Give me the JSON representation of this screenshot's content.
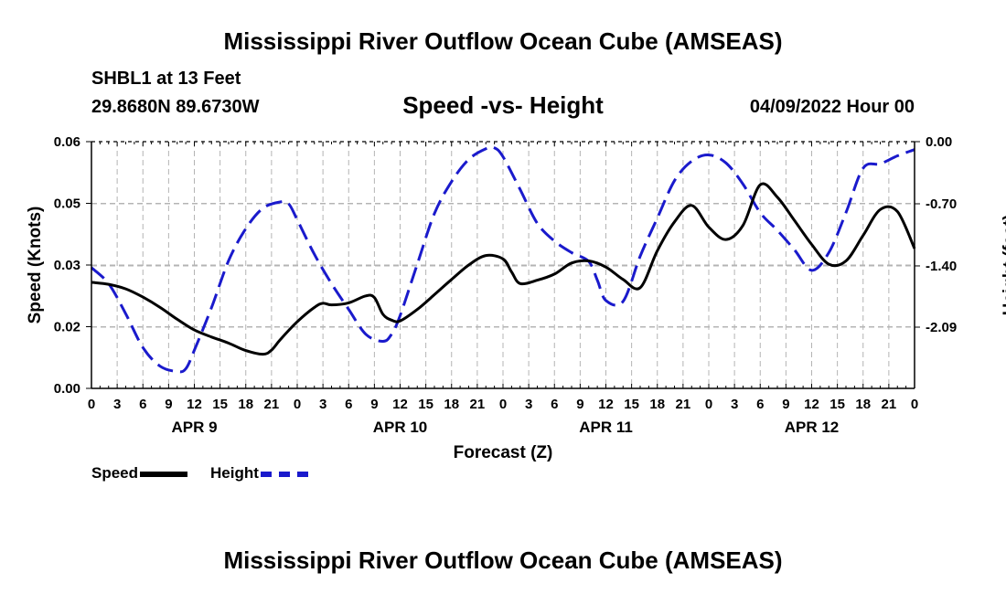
{
  "header": {
    "title": "Mississippi River Outflow Ocean Cube (AMSEAS)",
    "station": "SHBL1 at 13 Feet",
    "coords": "29.8680N  89.6730W",
    "subtitle": "Speed -vs- Height",
    "datetime": "04/09/2022 Hour 00"
  },
  "footer": {
    "title": "Mississippi River Outflow Ocean Cube (AMSEAS)"
  },
  "legend": {
    "speed": "Speed",
    "height": "Height"
  },
  "colors": {
    "speed": "#000000",
    "height": "#1a1acc",
    "grid": "#b4b4b4"
  },
  "chart_data": {
    "type": "line",
    "xlabel": "Forecast (Z)",
    "ylabel_left": "Speed (Knots)",
    "ylabel_right": "Height (feet)",
    "xlim": [
      0,
      96
    ],
    "ylim_left": [
      0,
      0.06
    ],
    "ylim_right": [
      -2.78,
      0.0
    ],
    "x_ticks": [
      0,
      3,
      6,
      9,
      12,
      15,
      18,
      21,
      24,
      27,
      30,
      33,
      36,
      39,
      42,
      45,
      48,
      51,
      54,
      57,
      60,
      63,
      66,
      69,
      72,
      75,
      78,
      81,
      84,
      87,
      90,
      93,
      96
    ],
    "x_tick_labels": [
      "0",
      "3",
      "6",
      "9",
      "12",
      "15",
      "18",
      "21",
      "0",
      "3",
      "6",
      "9",
      "12",
      "15",
      "18",
      "21",
      "0",
      "3",
      "6",
      "9",
      "12",
      "15",
      "18",
      "21",
      "0",
      "3",
      "6",
      "9",
      "12",
      "15",
      "18",
      "21",
      "0"
    ],
    "date_labels": [
      {
        "x": 12,
        "label": "APR 9"
      },
      {
        "x": 36,
        "label": "APR 10"
      },
      {
        "x": 60,
        "label": "APR 11"
      },
      {
        "x": 84,
        "label": "APR 12"
      }
    ],
    "y_left_ticks": [
      0,
      0.015,
      0.03,
      0.045,
      0.06
    ],
    "y_left_tick_labels": [
      "0.00",
      "0.02",
      "0.03",
      "0.05",
      "0.06"
    ],
    "y_right_ticks": [
      0.0,
      -0.7,
      -1.4,
      -2.09
    ],
    "y_right_tick_labels": [
      "0.00",
      "-0.70",
      "-1.40",
      "-2.09"
    ],
    "grid": true,
    "legend_position": "bottom-left",
    "series": [
      {
        "name": "Speed",
        "axis": "left",
        "style": "solid",
        "x": [
          0,
          2,
          4,
          6,
          8,
          10,
          12,
          14,
          16,
          18,
          20,
          21,
          22,
          24,
          26,
          27,
          28,
          30,
          32,
          33,
          34,
          35,
          36,
          38,
          40,
          42,
          44,
          46,
          48,
          49,
          50,
          52,
          54,
          56,
          58,
          60,
          62,
          64,
          66,
          68,
          70,
          72,
          74,
          76,
          78,
          80,
          82,
          84,
          86,
          88,
          90,
          92,
          94,
          96
        ],
        "y": [
          0.0258,
          0.0253,
          0.0242,
          0.0222,
          0.0197,
          0.0168,
          0.0142,
          0.0125,
          0.011,
          0.0092,
          0.0083,
          0.0093,
          0.0118,
          0.0162,
          0.0197,
          0.0207,
          0.0203,
          0.0208,
          0.0225,
          0.0221,
          0.018,
          0.0166,
          0.0164,
          0.0192,
          0.0228,
          0.0265,
          0.03,
          0.0323,
          0.0315,
          0.0283,
          0.0255,
          0.0263,
          0.0278,
          0.0305,
          0.031,
          0.0295,
          0.0265,
          0.0245,
          0.0335,
          0.0405,
          0.0445,
          0.0392,
          0.0362,
          0.0397,
          0.0495,
          0.0465,
          0.0408,
          0.035,
          0.0302,
          0.031,
          0.0372,
          0.0435,
          0.043,
          0.034
        ]
      },
      {
        "name": "Height",
        "axis": "right",
        "style": "dashed",
        "x": [
          0,
          2,
          4,
          6,
          8,
          10,
          11,
          12,
          14,
          16,
          18,
          20,
          22,
          23,
          24,
          26,
          28,
          30,
          32,
          34,
          35,
          36,
          38,
          40,
          42,
          44,
          46,
          47,
          48,
          50,
          52,
          54,
          56,
          58,
          59,
          60,
          62,
          64,
          66,
          68,
          70,
          72,
          74,
          76,
          78,
          80,
          82,
          84,
          86,
          88,
          90,
          92,
          94,
          96
        ],
        "y": [
          -1.42,
          -1.6,
          -1.94,
          -2.32,
          -2.53,
          -2.59,
          -2.56,
          -2.35,
          -1.87,
          -1.34,
          -0.98,
          -0.75,
          -0.68,
          -0.7,
          -0.88,
          -1.27,
          -1.6,
          -1.89,
          -2.17,
          -2.25,
          -2.17,
          -1.96,
          -1.38,
          -0.81,
          -0.45,
          -0.2,
          -0.08,
          -0.07,
          -0.17,
          -0.54,
          -0.92,
          -1.12,
          -1.25,
          -1.35,
          -1.56,
          -1.79,
          -1.8,
          -1.29,
          -0.86,
          -0.44,
          -0.22,
          -0.15,
          -0.24,
          -0.48,
          -0.8,
          -1.0,
          -1.22,
          -1.45,
          -1.25,
          -0.8,
          -0.3,
          -0.25,
          -0.16,
          -0.09
        ]
      }
    ]
  }
}
